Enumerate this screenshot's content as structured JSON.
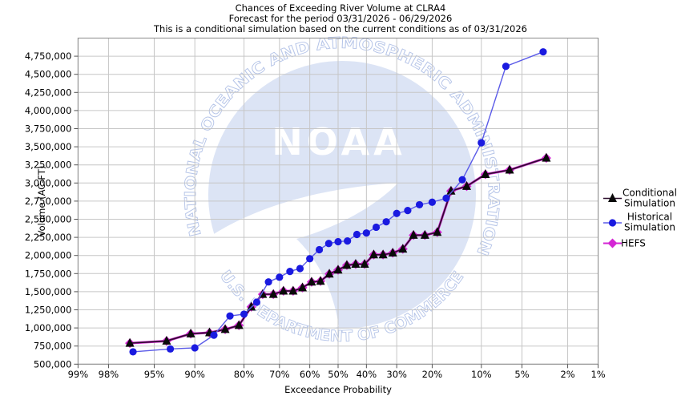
{
  "chart_data": {
    "type": "line",
    "title": "Chances of Exceeding River Volume at CLRA4",
    "subtitle": "Forecast for the period 03/31/2026 - 06/29/2026",
    "note": "This is a conditional simulation based on the current conditions as of 03/31/2026",
    "xlabel": "Exceedance Probability",
    "ylabel": "Volume (AC-FT)",
    "x_scale": "normal-probability (probit), reversed 99% to 1%",
    "x_tick_percents": [
      99,
      98,
      95,
      90,
      80,
      70,
      60,
      50,
      40,
      30,
      20,
      10,
      5,
      2,
      1
    ],
    "x_tick_labels": [
      "99%",
      "98%",
      "95%",
      "90%",
      "80%",
      "70%",
      "60%",
      "50%",
      "40%",
      "30%",
      "20%",
      "10%",
      "5%",
      "2%",
      "1%"
    ],
    "y_ticks": [
      500000,
      750000,
      1000000,
      1250000,
      1500000,
      1750000,
      2000000,
      2250000,
      2500000,
      2750000,
      3000000,
      3250000,
      3500000,
      3750000,
      4000000,
      4250000,
      4500000,
      4750000
    ],
    "ylim": [
      500000,
      5000000
    ],
    "grid": true,
    "legend_position": "right",
    "series": [
      {
        "name": "Conditional Simulation",
        "marker": "triangle",
        "marker_color": "#0a0a0a",
        "line_color": "#2d0f2d",
        "points": [
          [
            96.875,
            790000
          ],
          [
            93.75,
            820000
          ],
          [
            90.625,
            920000
          ],
          [
            87.5,
            935000
          ],
          [
            84.375,
            980000
          ],
          [
            81.25,
            1035000
          ],
          [
            78.125,
            1290000
          ],
          [
            75,
            1465000
          ],
          [
            71.875,
            1465000
          ],
          [
            68.75,
            1510000
          ],
          [
            65.625,
            1510000
          ],
          [
            62.5,
            1555000
          ],
          [
            59.375,
            1635000
          ],
          [
            56.25,
            1645000
          ],
          [
            53.125,
            1745000
          ],
          [
            50,
            1800000
          ],
          [
            46.875,
            1865000
          ],
          [
            43.75,
            1880000
          ],
          [
            40.625,
            1880000
          ],
          [
            37.5,
            2010000
          ],
          [
            34.375,
            2010000
          ],
          [
            31.25,
            2035000
          ],
          [
            28.125,
            2090000
          ],
          [
            25,
            2280000
          ],
          [
            21.875,
            2280000
          ],
          [
            18.75,
            2320000
          ],
          [
            15.625,
            2890000
          ],
          [
            12.5,
            2955000
          ],
          [
            9.375,
            3120000
          ],
          [
            6.25,
            3180000
          ],
          [
            3.125,
            3345000
          ]
        ]
      },
      {
        "name": "Historical Simulation",
        "marker": "circle",
        "marker_color": "#1a1ae0",
        "line_color": "#5b5be8",
        "points": [
          [
            96.67,
            670000
          ],
          [
            93.33,
            710000
          ],
          [
            90,
            725000
          ],
          [
            86.67,
            900000
          ],
          [
            83.33,
            1165000
          ],
          [
            80,
            1190000
          ],
          [
            76.67,
            1355000
          ],
          [
            73.33,
            1635000
          ],
          [
            70,
            1700000
          ],
          [
            66.67,
            1780000
          ],
          [
            63.33,
            1820000
          ],
          [
            60,
            1955000
          ],
          [
            56.67,
            2080000
          ],
          [
            53.33,
            2165000
          ],
          [
            50,
            2190000
          ],
          [
            46.67,
            2200000
          ],
          [
            43.33,
            2290000
          ],
          [
            40,
            2310000
          ],
          [
            36.67,
            2390000
          ],
          [
            33.33,
            2465000
          ],
          [
            30,
            2580000
          ],
          [
            26.67,
            2620000
          ],
          [
            23.33,
            2700000
          ],
          [
            20,
            2735000
          ],
          [
            16.67,
            2790000
          ],
          [
            13.33,
            3045000
          ],
          [
            10,
            3555000
          ],
          [
            6.67,
            4610000
          ],
          [
            3.33,
            4810000
          ]
        ]
      },
      {
        "name": "HEFS",
        "marker": "diamond",
        "marker_color": "#d426d4",
        "line_color": "#d426d4",
        "overlaps": "Conditional Simulation",
        "points": [
          [
            96.875,
            790000
          ],
          [
            93.75,
            820000
          ],
          [
            90.625,
            920000
          ],
          [
            87.5,
            935000
          ],
          [
            84.375,
            980000
          ],
          [
            81.25,
            1035000
          ],
          [
            78.125,
            1290000
          ],
          [
            75,
            1465000
          ],
          [
            71.875,
            1465000
          ],
          [
            68.75,
            1510000
          ],
          [
            65.625,
            1510000
          ],
          [
            62.5,
            1555000
          ],
          [
            59.375,
            1635000
          ],
          [
            56.25,
            1645000
          ],
          [
            53.125,
            1745000
          ],
          [
            50,
            1800000
          ],
          [
            46.875,
            1865000
          ],
          [
            43.75,
            1880000
          ],
          [
            40.625,
            1880000
          ],
          [
            37.5,
            2010000
          ],
          [
            34.375,
            2010000
          ],
          [
            31.25,
            2035000
          ],
          [
            28.125,
            2090000
          ],
          [
            25,
            2280000
          ],
          [
            21.875,
            2280000
          ],
          [
            18.75,
            2320000
          ],
          [
            15.625,
            2890000
          ],
          [
            12.5,
            2955000
          ],
          [
            9.375,
            3120000
          ],
          [
            6.25,
            3180000
          ],
          [
            3.125,
            3345000
          ]
        ]
      }
    ]
  },
  "legend": {
    "items": [
      {
        "label_lines": [
          "Conditional",
          "Simulation"
        ],
        "marker": "triangle",
        "marker_color": "#0a0a0a",
        "line_color": "#2d0f2d"
      },
      {
        "label_lines": [
          "Historical",
          "Simulation"
        ],
        "marker": "circle",
        "marker_color": "#1a1ae0",
        "line_color": "#5b5be8"
      },
      {
        "label_lines": [
          "HEFS"
        ],
        "marker": "diamond",
        "marker_color": "#d426d4",
        "line_color": "#d426d4"
      }
    ]
  },
  "watermark": {
    "top_text": "NATIONAL OCEANIC AND ATMOSPHERIC ADMINISTRATION",
    "bottom_text": "U.S. DEPARTMENT OF COMMERCE",
    "center_text": "NOAA",
    "circle_color": "#dce4f5",
    "emblem_color": "#ffffff"
  }
}
